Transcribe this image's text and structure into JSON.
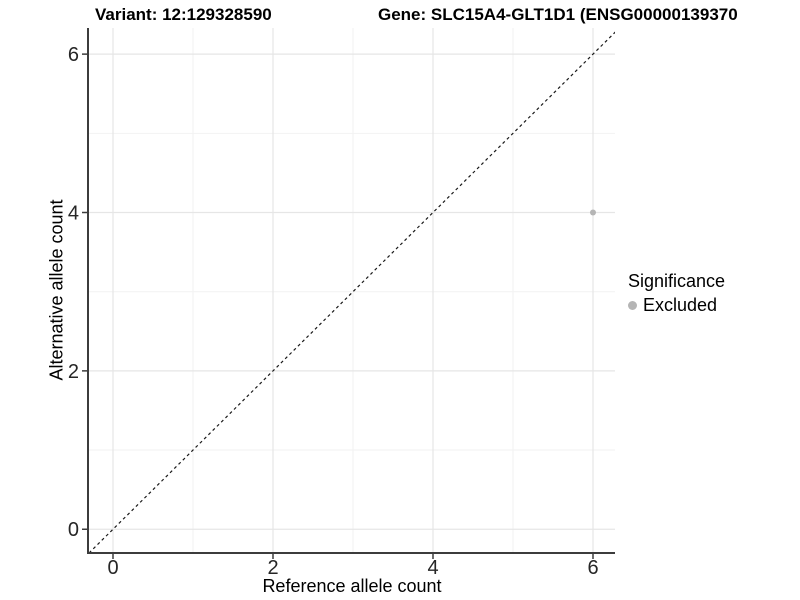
{
  "titles": {
    "variant": "Variant: 12:129328590",
    "gene": "Gene: SLC15A4-GLT1D1 (ENSG00000139370"
  },
  "chart_data": {
    "type": "scatter",
    "title": "Variant: 12:129328590 | Gene: SLC15A4-GLT1D1 (ENSG00000139370",
    "xlabel": "Reference allele count",
    "ylabel": "Alternative allele count",
    "xlim": [
      -0.3125,
      6.275
    ],
    "ylim": [
      -0.3,
      6.33
    ],
    "x_ticks": [
      0,
      2,
      4,
      6
    ],
    "y_ticks": [
      0,
      2,
      4,
      6
    ],
    "x_minor": [
      1,
      3,
      5
    ],
    "y_minor": [
      1,
      3,
      5
    ],
    "grid": true,
    "diagonal": {
      "style": "dashed",
      "from": -0.3,
      "to": 6.33
    },
    "series": [
      {
        "name": "Excluded",
        "points": [
          {
            "x": 6,
            "y": 4
          }
        ]
      }
    ],
    "legend": {
      "title": "Significance",
      "position": "right",
      "entries": [
        {
          "label": "Excluded",
          "color": "#b5b5b5"
        }
      ]
    },
    "colors": {
      "point": "#b5b5b5",
      "grid_major": "#e6e6e6",
      "grid_minor": "#f2f2f2",
      "axis": "#3c3c3c",
      "diagonal": "#1a1a1a"
    }
  }
}
